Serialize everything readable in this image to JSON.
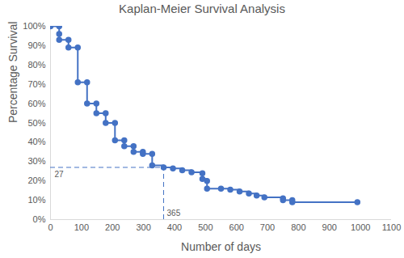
{
  "chart_data": {
    "type": "line",
    "title": "Kaplan-Meier Survival Analysis",
    "x_label": "Number of days",
    "y_label": "Percentage Survival",
    "x": [
      0,
      28,
      28,
      28,
      58,
      58,
      88,
      88,
      118,
      118,
      148,
      148,
      178,
      178,
      208,
      208,
      238,
      238,
      268,
      268,
      298,
      298,
      328,
      328,
      365,
      395,
      425,
      455,
      490,
      490,
      505,
      505,
      550,
      580,
      610,
      640,
      665,
      690,
      750,
      750,
      780,
      780,
      990
    ],
    "values": [
      100,
      100,
      96,
      93,
      93,
      89,
      89,
      71,
      71,
      60,
      60,
      55,
      55,
      50,
      50,
      41,
      41,
      38,
      38,
      35,
      35,
      34,
      34,
      28,
      27,
      26.5,
      25.5,
      24.5,
      24,
      21,
      20,
      16,
      16,
      15.5,
      14.5,
      13.5,
      12.5,
      11.5,
      11,
      10,
      10,
      9,
      9
    ],
    "color": "#4472c4",
    "marker": "circle",
    "reference_point": {
      "x": 365,
      "y": 27
    },
    "xlim": [
      0,
      1100
    ],
    "xticks": [
      0,
      100,
      200,
      300,
      400,
      500,
      600,
      700,
      800,
      900,
      1000,
      1100
    ],
    "ylim": [
      0,
      100
    ],
    "yticks": [
      {
        "value": 0,
        "label": "0%"
      },
      {
        "value": 10,
        "label": "10%"
      },
      {
        "value": 20,
        "label": "20%"
      },
      {
        "value": 30,
        "label": "30%"
      },
      {
        "value": 40,
        "label": "40%"
      },
      {
        "value": 50,
        "label": "50%"
      },
      {
        "value": 60,
        "label": "60%"
      },
      {
        "value": 70,
        "label": "70%"
      },
      {
        "value": 80,
        "label": "80%"
      },
      {
        "value": 90,
        "label": "90%"
      },
      {
        "value": 100,
        "label": "100%"
      }
    ],
    "grid": false
  }
}
